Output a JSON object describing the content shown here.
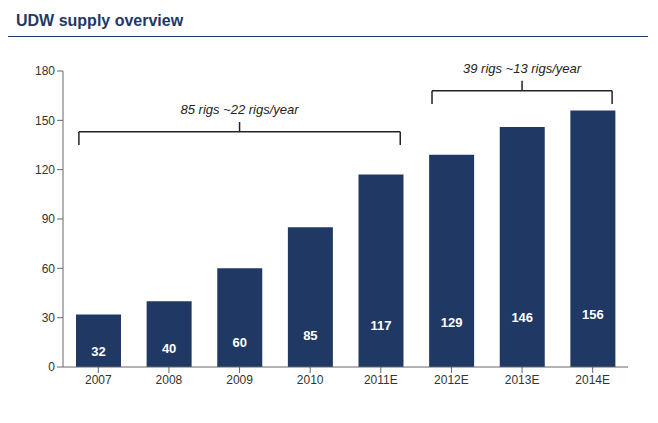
{
  "chart_data": {
    "type": "bar",
    "title": "UDW supply overview",
    "categories": [
      "2007",
      "2008",
      "2009",
      "2010",
      "2011E",
      "2012E",
      "2013E",
      "2014E"
    ],
    "values": [
      32,
      40,
      60,
      85,
      117,
      129,
      146,
      156
    ],
    "color": "#1F3864",
    "ylim": [
      0,
      180
    ],
    "yticks": [
      0,
      30,
      60,
      90,
      120,
      150,
      180
    ],
    "grid": false,
    "data_labels": true,
    "annotations": [
      {
        "text": "85 rigs ~22 rigs/year",
        "from": "2007",
        "to": "2011E",
        "y": 143
      },
      {
        "text": "39 rigs ~13 rigs/year",
        "from": "2012E",
        "to": "2014E",
        "y": 168
      }
    ]
  }
}
